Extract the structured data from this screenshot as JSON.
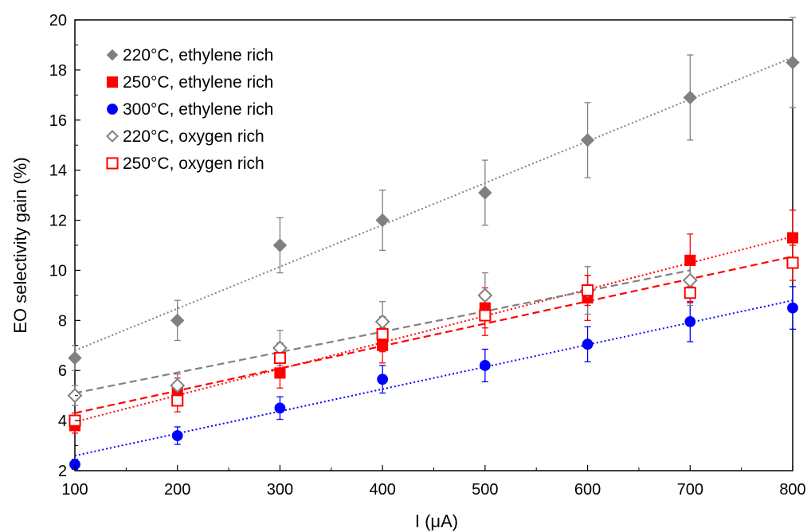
{
  "chart_data": {
    "type": "scatter",
    "xlabel": "I (μA)",
    "ylabel": "EO selectivity gain (%)",
    "xlim": [
      100,
      800
    ],
    "ylim": [
      2,
      20
    ],
    "xticks": [
      100,
      200,
      300,
      400,
      500,
      600,
      700,
      800
    ],
    "yticks": [
      2,
      4,
      6,
      8,
      10,
      12,
      14,
      16,
      18,
      20
    ],
    "grid": false,
    "legend_position": "top-left",
    "series": [
      {
        "name": "220°C, ethylene rich",
        "marker": "diamond-filled",
        "color": "#808080",
        "trendline": "dotted",
        "x": [
          100,
          200,
          300,
          400,
          500,
          600,
          700,
          800
        ],
        "y": [
          6.5,
          8.0,
          11.0,
          12.0,
          13.1,
          15.2,
          16.9,
          18.3
        ],
        "err": [
          0.5,
          0.8,
          1.1,
          1.2,
          1.3,
          1.5,
          1.7,
          1.8
        ],
        "fit": [
          [
            100,
            6.8
          ],
          [
            800,
            18.5
          ]
        ]
      },
      {
        "name": "250°C, ethylene rich",
        "marker": "square-filled",
        "color": "#ff0000",
        "trendline": "dotted",
        "x": [
          100,
          200,
          300,
          400,
          500,
          600,
          700,
          800
        ],
        "y": [
          3.8,
          5.2,
          5.9,
          7.0,
          8.5,
          8.9,
          10.4,
          11.3
        ],
        "err": [
          0.3,
          0.5,
          0.6,
          0.7,
          0.8,
          0.9,
          1.05,
          1.1
        ],
        "fit": [
          [
            100,
            3.95
          ],
          [
            800,
            11.35
          ]
        ]
      },
      {
        "name": "300°C, ethylene rich",
        "marker": "circle-filled",
        "color": "#0000ff",
        "trendline": "dotted",
        "x": [
          100,
          200,
          300,
          400,
          500,
          600,
          700,
          800
        ],
        "y": [
          2.25,
          3.4,
          4.5,
          5.65,
          6.2,
          7.05,
          7.95,
          8.5
        ],
        "err": [
          0.2,
          0.35,
          0.45,
          0.55,
          0.65,
          0.7,
          0.8,
          0.85
        ],
        "fit": [
          [
            100,
            2.6
          ],
          [
            800,
            8.8
          ]
        ]
      },
      {
        "name": "220°C, oxygen rich",
        "marker": "diamond-open",
        "color": "#808080",
        "trendline": "dashed",
        "x": [
          100,
          200,
          300,
          400,
          500,
          600,
          700
        ],
        "y": [
          5.0,
          5.4,
          6.9,
          7.95,
          9.0,
          9.2,
          9.6
        ],
        "err": [
          0.4,
          0.45,
          0.7,
          0.8,
          0.9,
          0.95,
          1.0
        ],
        "fit": [
          [
            100,
            5.1
          ],
          [
            700,
            10.0
          ]
        ]
      },
      {
        "name": "250°C, oxygen rich",
        "marker": "square-open",
        "color": "#ff0000",
        "trendline": "dashed",
        "x": [
          100,
          200,
          300,
          400,
          500,
          600,
          700,
          800
        ],
        "y": [
          4.0,
          4.8,
          6.5,
          7.45,
          8.2,
          9.2,
          9.1,
          10.3
        ],
        "err": [
          0.3,
          0.45,
          0.6,
          0.7,
          0.8,
          0.6,
          0.4,
          0.7
        ],
        "fit": [
          [
            100,
            4.3
          ],
          [
            800,
            10.55
          ]
        ]
      }
    ]
  }
}
